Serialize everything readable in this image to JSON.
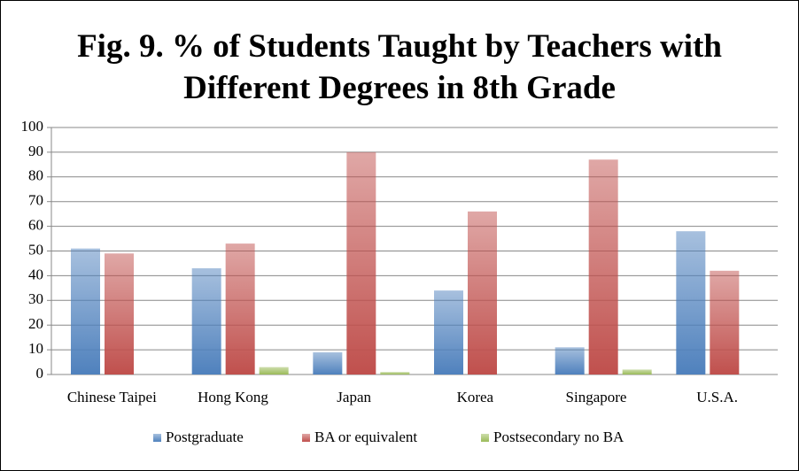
{
  "chart_data": {
    "type": "bar",
    "title": "Fig. 9. % of Students Taught by Teachers with Different Degrees in 8th Grade",
    "categories": [
      "Chinese Taipei",
      "Hong Kong",
      "Japan",
      "Korea",
      "Singapore",
      "U.S.A."
    ],
    "series": [
      {
        "name": "Postgraduate",
        "color": "#4f81bd",
        "values": [
          51,
          43,
          9,
          34,
          11,
          58
        ]
      },
      {
        "name": "BA or equivalent",
        "color": "#c0504d",
        "values": [
          49,
          53,
          90,
          66,
          87,
          42
        ]
      },
      {
        "name": "Postsecondary no BA",
        "color": "#9bbb59",
        "values": [
          0,
          3,
          1,
          0,
          2,
          0
        ]
      }
    ],
    "ylim": [
      0,
      100
    ],
    "yticks": [
      0,
      10,
      20,
      30,
      40,
      50,
      60,
      70,
      80,
      90,
      100
    ],
    "grid": true,
    "legend": "bottom"
  }
}
